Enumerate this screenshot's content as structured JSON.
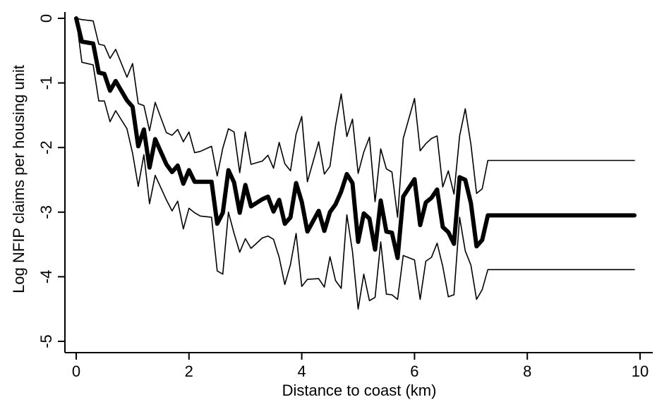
{
  "chart_data": {
    "type": "line",
    "title": "",
    "xlabel": "Distance to coast (km)",
    "ylabel": "Log NFIP claims per housing unit",
    "xlim": [
      0,
      10
    ],
    "ylim": [
      -5,
      0
    ],
    "xticks": [
      "0",
      "2",
      "4",
      "6",
      "8",
      "10"
    ],
    "xtick_values": [
      0,
      2,
      4,
      6,
      8,
      10
    ],
    "yticks": [
      "0",
      "-1",
      "-2",
      "-3",
      "-4",
      "-5"
    ],
    "ytick_values": [
      0,
      -1,
      -2,
      -3,
      -4,
      -5
    ],
    "grid": false,
    "legend": "none",
    "x": [
      0.0,
      0.1,
      0.3,
      0.4,
      0.5,
      0.6,
      0.7,
      0.9,
      1.0,
      1.1,
      1.2,
      1.3,
      1.4,
      1.6,
      1.7,
      1.8,
      1.9,
      2.0,
      2.1,
      2.2,
      2.4,
      2.5,
      2.6,
      2.7,
      2.8,
      2.9,
      3.0,
      3.1,
      3.3,
      3.4,
      3.5,
      3.6,
      3.7,
      3.8,
      3.9,
      4.0,
      4.1,
      4.3,
      4.4,
      4.5,
      4.6,
      4.7,
      4.8,
      4.9,
      5.0,
      5.1,
      5.2,
      5.3,
      5.4,
      5.5,
      5.6,
      5.7,
      5.8,
      6.0,
      6.1,
      6.2,
      6.3,
      6.4,
      6.5,
      6.6,
      6.7,
      6.8,
      6.9,
      7.0,
      7.1,
      7.2,
      7.3,
      7.4,
      7.5,
      7.7,
      7.8,
      7.9,
      8.0,
      8.1,
      8.2,
      8.3,
      8.4,
      8.6,
      8.7,
      8.8,
      8.9,
      9.0,
      9.1,
      9.3,
      9.4,
      9.5,
      9.6,
      9.7,
      9.8,
      9.9
    ],
    "series": [
      {
        "role": "estimate",
        "values": [
          0.0,
          -0.36,
          -0.39,
          -0.84,
          -0.86,
          -1.12,
          -0.97,
          -1.27,
          -1.37,
          -1.98,
          -1.72,
          -2.31,
          -1.87,
          -2.26,
          -2.38,
          -2.28,
          -2.56,
          -2.35,
          -2.53,
          -2.53,
          -2.53,
          -3.18,
          -3.01,
          -2.35,
          -2.54,
          -3.01,
          -2.58,
          -2.91,
          -2.8,
          -2.76,
          -2.99,
          -2.81,
          -3.18,
          -3.08,
          -2.55,
          -2.84,
          -3.3,
          -2.98,
          -3.29,
          -3.0,
          -2.88,
          -2.68,
          -2.41,
          -2.55,
          -3.46,
          -3.02,
          -3.1,
          -3.58,
          -2.82,
          -3.3,
          -3.32,
          -3.71,
          -2.76,
          -2.49,
          -3.2,
          -2.85,
          -2.78,
          -2.65,
          -3.23,
          -3.31,
          -3.49,
          -2.46,
          -2.5,
          -2.86,
          -3.53,
          -3.43,
          -3.05,
          -3.05,
          -3.05,
          -3.05,
          -3.05,
          -3.05,
          -3.05,
          -3.05,
          -3.05,
          -3.05,
          -3.05,
          -3.05,
          -3.05,
          -3.05,
          -3.05,
          -3.05,
          -3.05,
          -3.05,
          -3.05,
          -3.05,
          -3.05,
          -3.05,
          -3.05,
          -3.05
        ]
      },
      {
        "role": "upper-bound",
        "values": [
          0.0,
          -0.02,
          -0.04,
          -0.4,
          -0.42,
          -0.62,
          -0.48,
          -0.91,
          -0.7,
          -1.32,
          -1.35,
          -1.74,
          -1.3,
          -1.77,
          -1.81,
          -1.72,
          -1.91,
          -1.76,
          -2.08,
          -2.06,
          -1.98,
          -2.44,
          -2.01,
          -1.71,
          -1.76,
          -2.39,
          -1.76,
          -2.26,
          -2.21,
          -2.12,
          -2.32,
          -1.92,
          -2.25,
          -2.36,
          -1.79,
          -1.52,
          -2.53,
          -1.91,
          -2.41,
          -2.29,
          -1.66,
          -1.17,
          -1.83,
          -1.56,
          -2.4,
          -2.07,
          -1.84,
          -2.84,
          -2.02,
          -2.33,
          -2.38,
          -3.08,
          -1.86,
          -1.24,
          -2.05,
          -1.94,
          -1.86,
          -1.82,
          -2.61,
          -2.36,
          -2.72,
          -1.82,
          -1.4,
          -1.95,
          -2.71,
          -2.64,
          -2.2,
          -2.2,
          -2.2,
          -2.2,
          -2.2,
          -2.2,
          -2.2,
          -2.2,
          -2.2,
          -2.2,
          -2.2,
          -2.2,
          -2.2,
          -2.2,
          -2.2,
          -2.2,
          -2.2,
          -2.2,
          -2.2,
          -2.2,
          -2.2,
          -2.2,
          -2.2,
          -2.2
        ]
      },
      {
        "role": "lower-bound",
        "values": [
          0.0,
          -0.68,
          -0.72,
          -1.28,
          -1.28,
          -1.6,
          -1.43,
          -1.71,
          -2.09,
          -2.6,
          -2.11,
          -2.87,
          -2.43,
          -2.81,
          -2.98,
          -2.83,
          -3.26,
          -2.94,
          -3.01,
          -3.06,
          -3.08,
          -3.91,
          -3.96,
          -3.0,
          -3.33,
          -3.62,
          -3.41,
          -3.56,
          -3.4,
          -3.37,
          -3.42,
          -3.7,
          -4.12,
          -3.81,
          -3.33,
          -4.15,
          -4.04,
          -4.03,
          -4.16,
          -3.69,
          -4.06,
          -4.18,
          -3.04,
          -3.61,
          -4.5,
          -3.96,
          -4.37,
          -4.32,
          -3.46,
          -4.27,
          -4.28,
          -4.35,
          -3.67,
          -3.74,
          -4.35,
          -3.76,
          -3.7,
          -3.48,
          -3.84,
          -4.31,
          -4.28,
          -3.08,
          -3.6,
          -3.82,
          -4.35,
          -4.2,
          -3.89,
          -3.89,
          -3.89,
          -3.89,
          -3.89,
          -3.89,
          -3.89,
          -3.89,
          -3.89,
          -3.89,
          -3.89,
          -3.89,
          -3.89,
          -3.89,
          -3.89,
          -3.89,
          -3.89,
          -3.89,
          -3.89,
          -3.89,
          -3.89,
          -3.89,
          -3.89,
          -3.89
        ]
      }
    ]
  }
}
